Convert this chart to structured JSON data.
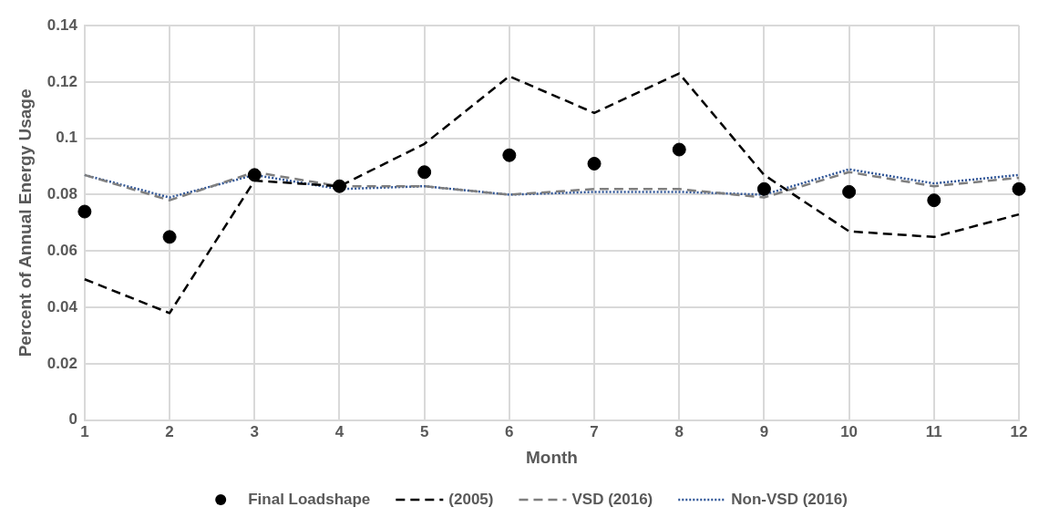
{
  "chart_data": {
    "type": "line",
    "xlabel": "Month",
    "ylabel": "Percent of Annual Energy Usage",
    "x": [
      1,
      2,
      3,
      4,
      5,
      6,
      7,
      8,
      9,
      10,
      11,
      12
    ],
    "xlim": [
      1,
      12
    ],
    "xticks": [
      1,
      2,
      3,
      4,
      5,
      6,
      7,
      8,
      9,
      10,
      11,
      12
    ],
    "ylim": [
      0,
      0.14
    ],
    "yticks": [
      0,
      0.02,
      0.04,
      0.06,
      0.08,
      0.1,
      0.12,
      0.14
    ],
    "grid": true,
    "legend": "bottom",
    "series": [
      {
        "name": "Final Loadshape",
        "type": "scatter",
        "marker": "circle",
        "color": "#000000",
        "values": [
          0.074,
          0.065,
          0.087,
          0.083,
          0.088,
          0.094,
          0.091,
          0.096,
          0.082,
          0.081,
          0.078,
          0.082
        ]
      },
      {
        "name": "(2005)",
        "type": "line",
        "line_style": "dashed",
        "color": "#000000",
        "values": [
          0.05,
          0.038,
          0.085,
          0.083,
          0.098,
          0.122,
          0.109,
          0.123,
          0.087,
          0.067,
          0.065,
          0.073
        ]
      },
      {
        "name": "VSD (2016)",
        "type": "line",
        "line_style": "dashed",
        "color": "#7f7f7f",
        "values": [
          0.087,
          0.078,
          0.088,
          0.083,
          0.083,
          0.08,
          0.082,
          0.082,
          0.079,
          0.088,
          0.083,
          0.086
        ]
      },
      {
        "name": "Non-VSD (2016)",
        "type": "line",
        "line_style": "dotted",
        "color": "#2f5597",
        "values": [
          0.087,
          0.079,
          0.087,
          0.082,
          0.083,
          0.08,
          0.081,
          0.081,
          0.08,
          0.089,
          0.084,
          0.087
        ]
      }
    ]
  }
}
